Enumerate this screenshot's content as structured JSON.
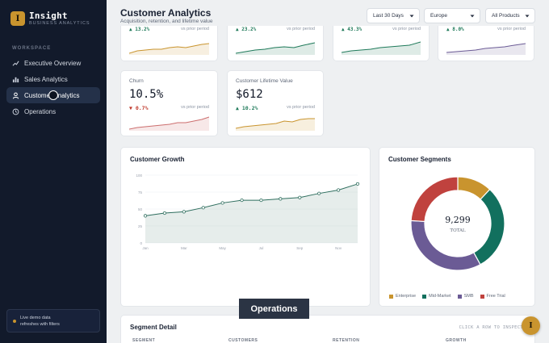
{
  "brand": {
    "logo_letter": "I",
    "title": "Insight",
    "subtitle": "BUSINESS ANALYTICS"
  },
  "sidebar": {
    "section_label": "WORKSPACE",
    "items": [
      {
        "label": "Executive Overview",
        "icon": "trend-line-icon",
        "active": false
      },
      {
        "label": "Sales Analytics",
        "icon": "bar-chart-icon",
        "active": false
      },
      {
        "label": "Customer Analytics",
        "icon": "user-icon",
        "active": true
      },
      {
        "label": "Operations",
        "icon": "clock-icon",
        "active": false
      }
    ],
    "demo_note": {
      "line1": "Live demo data",
      "line2": "refreshes with filters"
    }
  },
  "header": {
    "title": "Customer Analytics",
    "subtitle": "Acquisition, retention, and lifetime value",
    "filters": {
      "period": "Last 30 Days",
      "region": "Europe",
      "product": "All Products"
    }
  },
  "kpis_top": [
    {
      "delta": "▲ 13.2%",
      "vs": "vs prior period",
      "color": "#c9942e"
    },
    {
      "delta": "▲ 23.2%",
      "vs": "vs prior period",
      "color": "#1f7a5a"
    },
    {
      "delta": "▲ 43.3%",
      "vs": "vs prior period",
      "color": "#1f7a5a"
    },
    {
      "delta": "▲ 8.0%",
      "vs": "vs prior period",
      "color": "#6b5b95"
    }
  ],
  "kpis": [
    {
      "label": "Churn",
      "value": "10.5%",
      "delta": "▼ 0.7%",
      "vs": "vs prior period",
      "delta_color": "#c0392b",
      "spark_color": "#d98b8b"
    },
    {
      "label": "Customer Lifetime Value",
      "value": "$612",
      "delta": "▲ 10.2%",
      "vs": "vs prior period",
      "delta_color": "#1f7a5a",
      "spark_color": "#d4a94a"
    }
  ],
  "growth": {
    "title": "Customer Growth",
    "chart_data": {
      "type": "area",
      "x": [
        "Jan",
        "Feb",
        "Mar",
        "Apr",
        "May",
        "Jun",
        "Jul",
        "Aug",
        "Sep",
        "Oct",
        "Nov",
        "Dec"
      ],
      "x_ticks": [
        "Jan",
        "Mar",
        "May",
        "Jul",
        "Sep",
        "Nov"
      ],
      "y_ticks": [
        "0",
        "25",
        "50",
        "75",
        "100"
      ],
      "values": [
        40,
        44,
        46,
        52,
        59,
        63,
        63,
        65,
        67,
        73,
        78,
        87
      ],
      "ylim": [
        0,
        100
      ],
      "color": "#2e6e5e"
    }
  },
  "segments": {
    "title": "Customer Segments",
    "total_value": "9,299",
    "total_label": "TOTAL",
    "chart_data": {
      "type": "pie",
      "labels": [
        "Enterprise",
        "Mid-Market",
        "SMB",
        "Free Trial"
      ],
      "values": [
        12,
        30,
        34,
        24
      ],
      "colors": [
        "#c9942e",
        "#12705e",
        "#6b5b95",
        "#c0423e"
      ]
    }
  },
  "segment_detail": {
    "title": "Segment Detail",
    "hint": "CLICK A ROW TO INSPECT",
    "columns": [
      "SEGMENT",
      "CUSTOMERS",
      "RETENTION",
      "GROWTH"
    ]
  },
  "tooltip": "Operations",
  "fab_letter": "I"
}
